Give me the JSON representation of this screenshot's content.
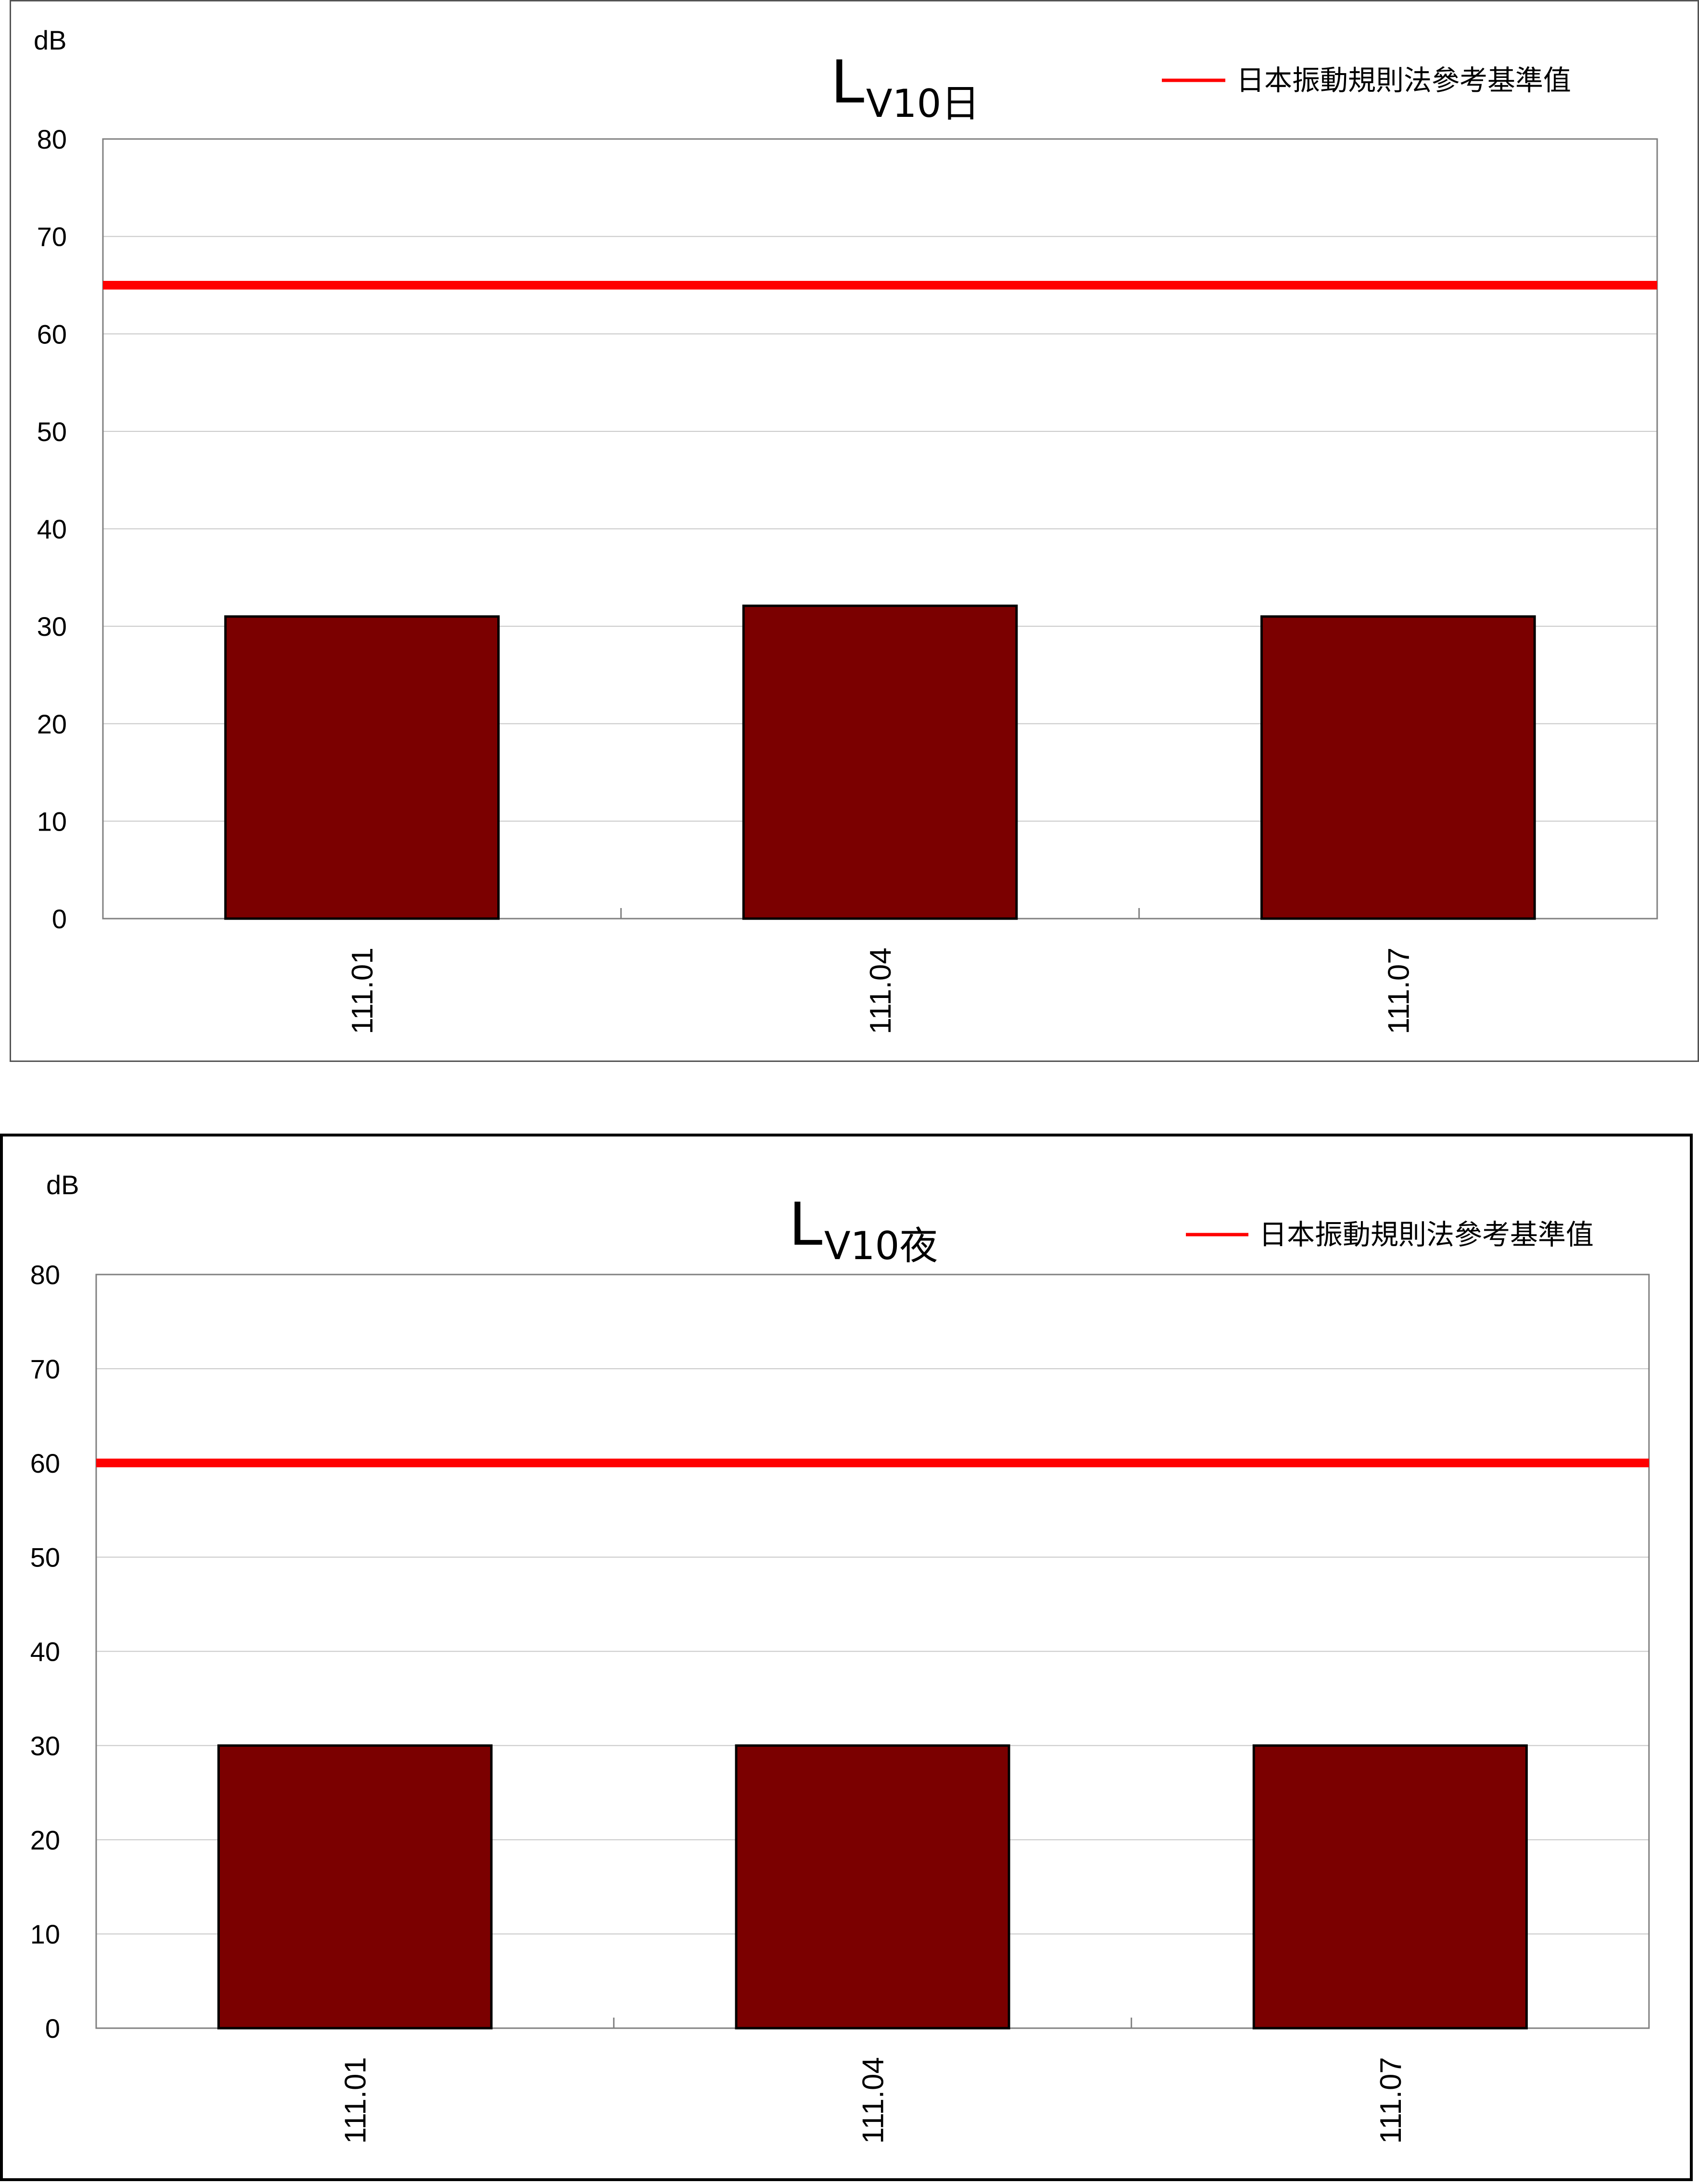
{
  "chart_data": [
    {
      "type": "bar",
      "title": "L",
      "title_subscript": "V10日",
      "ylabel": "dB",
      "ylim": [
        0,
        80
      ],
      "yticks": [
        0,
        10,
        20,
        30,
        40,
        50,
        60,
        70,
        80
      ],
      "categories": [
        "111.01",
        "111.04",
        "111.07"
      ],
      "series": [
        {
          "values": [
            31,
            32.1,
            31
          ],
          "color": "#7B0000"
        }
      ],
      "reference_line": {
        "name": "日本振動規則法參考基準值",
        "value": 65,
        "color": "#FF0000"
      },
      "grid": true,
      "legend": "top-right"
    },
    {
      "type": "bar",
      "title": "L",
      "title_subscript": "V10夜",
      "ylabel": "dB",
      "ylim": [
        0,
        80
      ],
      "yticks": [
        0,
        10,
        20,
        30,
        40,
        50,
        60,
        70,
        80
      ],
      "categories": [
        "111.01",
        "111.04",
        "111.07"
      ],
      "series": [
        {
          "values": [
            30,
            30,
            30
          ],
          "color": "#7B0000"
        }
      ],
      "reference_line": {
        "name": "日本振動規則法參考基準值",
        "value": 60,
        "color": "#FF0000"
      },
      "grid": true,
      "legend": "top-right"
    }
  ]
}
